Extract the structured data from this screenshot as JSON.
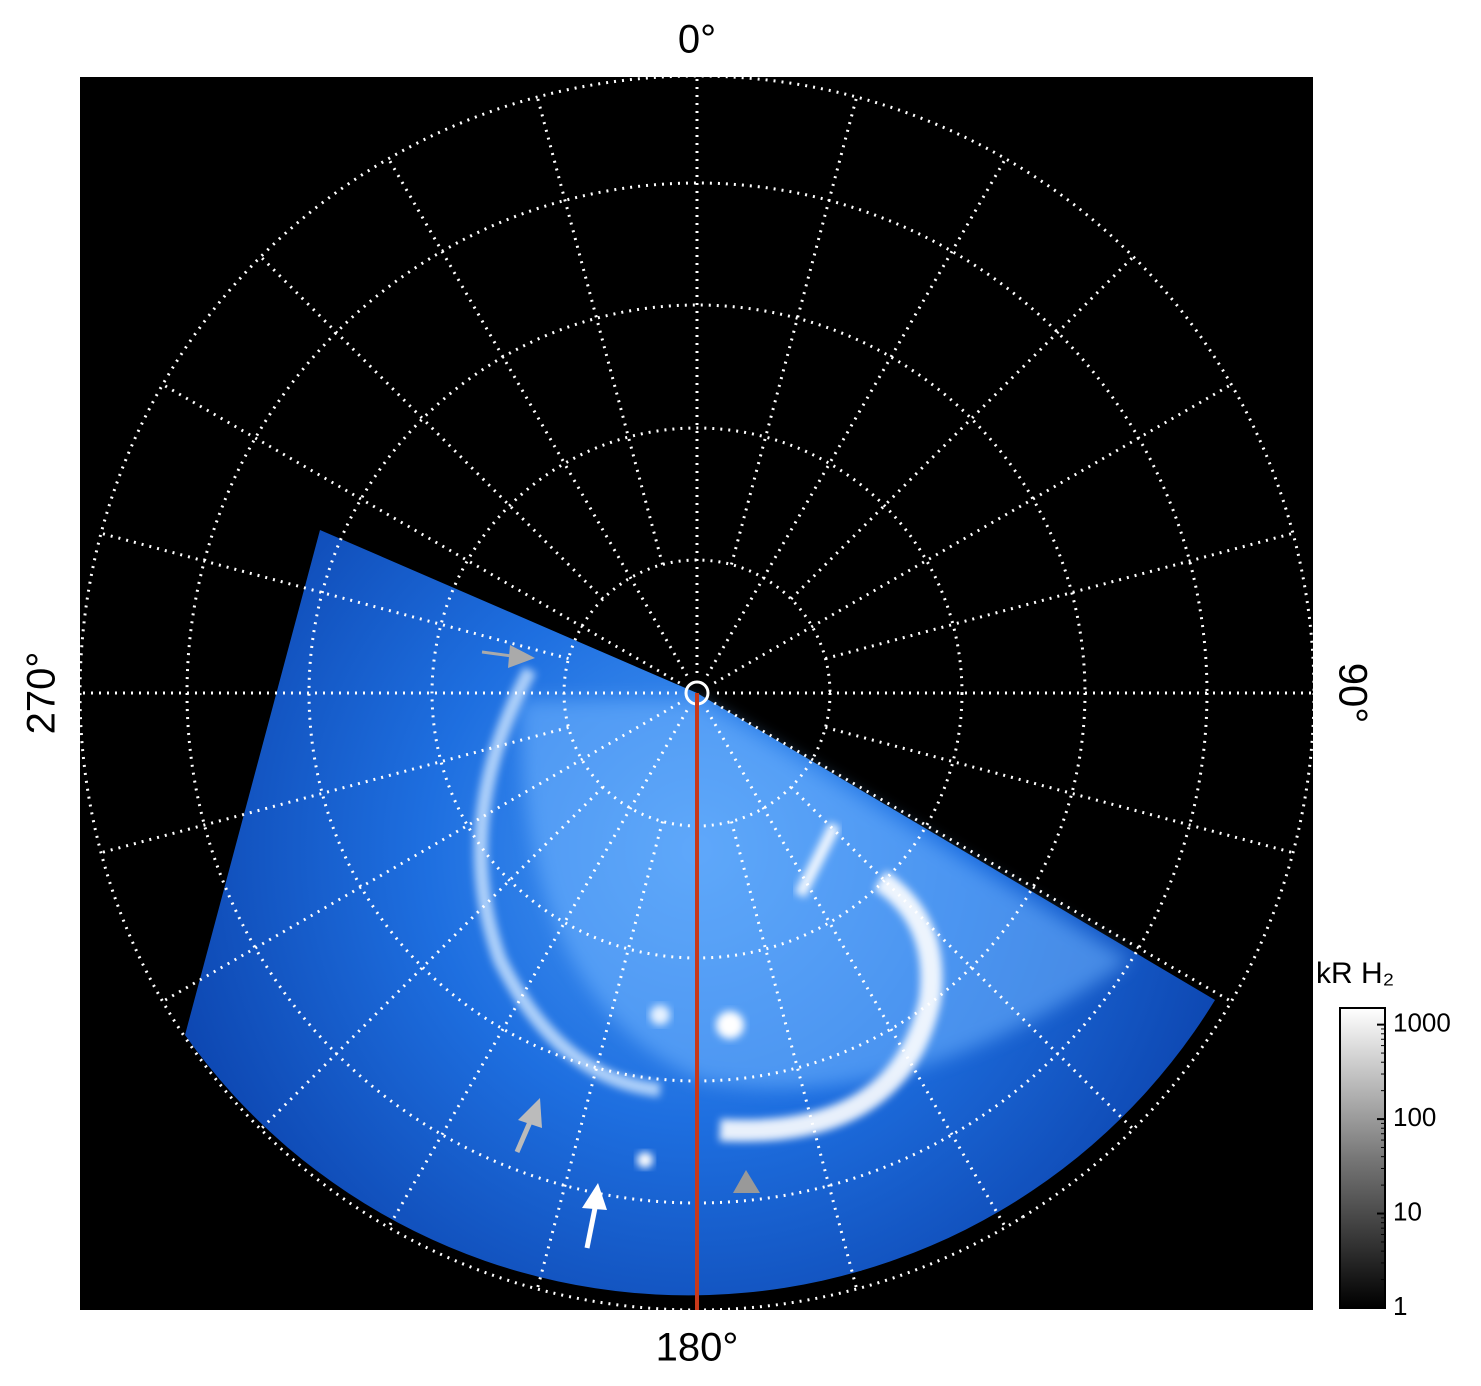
{
  "figure": {
    "labels": {
      "top": "0°",
      "right": "90°",
      "bottom": "180°",
      "left": "270°"
    },
    "colorbar": {
      "title": "kR H₂",
      "scale": "log",
      "ticks": [
        1,
        10,
        100,
        1000
      ],
      "range": [
        1,
        1500
      ]
    }
  }
}
